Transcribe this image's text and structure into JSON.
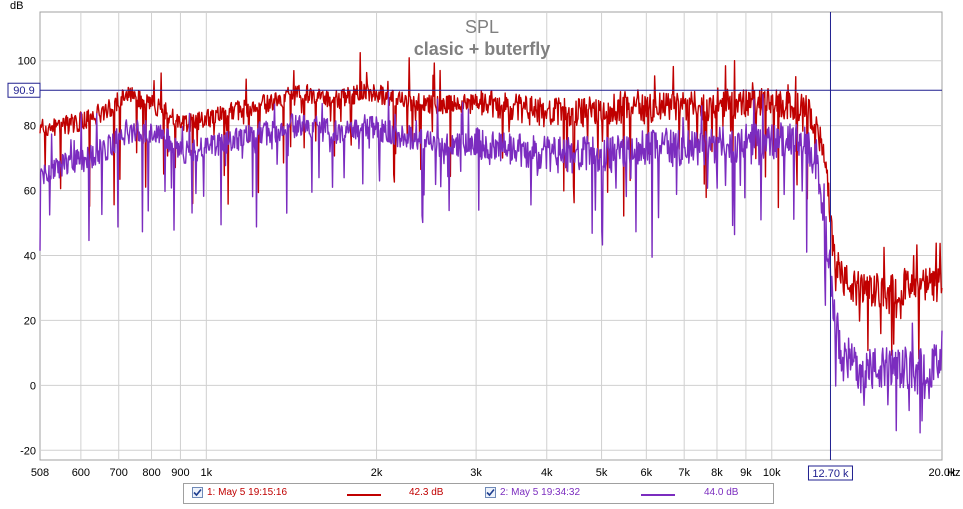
{
  "chart_data": {
    "type": "line",
    "title": "SPL",
    "subtitle": "clasic + buterfly",
    "ylabel": "dB",
    "xunit": "Hz",
    "xscale": "log",
    "xlim": [
      508,
      20000
    ],
    "ylim": [
      -23,
      115
    ],
    "grid": true,
    "yticks": [
      -20,
      0,
      20,
      40,
      60,
      80,
      100
    ],
    "xticks": [
      {
        "v": 508,
        "label": "508"
      },
      {
        "v": 600,
        "label": "600"
      },
      {
        "v": 700,
        "label": "700"
      },
      {
        "v": 800,
        "label": "800"
      },
      {
        "v": 900,
        "label": "900"
      },
      {
        "v": 1000,
        "label": "1k"
      },
      {
        "v": 2000,
        "label": "2k"
      },
      {
        "v": 3000,
        "label": "3k"
      },
      {
        "v": 4000,
        "label": "4k"
      },
      {
        "v": 5000,
        "label": "5k"
      },
      {
        "v": 6000,
        "label": "6k"
      },
      {
        "v": 7000,
        "label": "7k"
      },
      {
        "v": 8000,
        "label": "8k"
      },
      {
        "v": 9000,
        "label": "9k"
      },
      {
        "v": 10000,
        "label": "10k"
      },
      {
        "v": 20000,
        "label": "20.0k"
      }
    ],
    "cursor": {
      "x": 12700,
      "y": 90.9,
      "x_label": "12.70 k",
      "y_label": "90.9"
    },
    "series": [
      {
        "name": "1: May 5 19:15:16",
        "value_label": "42.3 dB",
        "color": "#c00000",
        "x": [
          508,
          560,
          620,
          680,
          720,
          760,
          800,
          850,
          900,
          950,
          1000,
          1100,
          1200,
          1300,
          1400,
          1500,
          1600,
          1700,
          1800,
          1900,
          2000,
          2200,
          2400,
          2600,
          2800,
          3000,
          3300,
          3600,
          4000,
          4400,
          4800,
          5200,
          5600,
          6000,
          6500,
          7000,
          7500,
          8000,
          8500,
          9000,
          9500,
          10000,
          10500,
          11000,
          11500,
          12000,
          12300,
          12600,
          12900,
          13300,
          14000,
          15000,
          16000,
          17000,
          18000,
          19000,
          20000
        ],
        "y": [
          79,
          80,
          82,
          86,
          90,
          88,
          87,
          84,
          80,
          81,
          82,
          84,
          86,
          87,
          89,
          90,
          89,
          88,
          89,
          91,
          90,
          88,
          87,
          86,
          87,
          87,
          86,
          85,
          84,
          84,
          84,
          84,
          85,
          85,
          86,
          86,
          86,
          86,
          86,
          87,
          87,
          87,
          86,
          86,
          85,
          80,
          72,
          60,
          42,
          33,
          30,
          29,
          29,
          30,
          30,
          31,
          31
        ]
      },
      {
        "name": "2: May 5 19:34:32",
        "value_label": "44.0 dB",
        "color": "#7b2cbf",
        "x": [
          508,
          560,
          620,
          680,
          720,
          760,
          800,
          850,
          900,
          950,
          1000,
          1100,
          1200,
          1300,
          1400,
          1500,
          1600,
          1700,
          1800,
          1900,
          2000,
          2200,
          2400,
          2600,
          2800,
          3000,
          3300,
          3600,
          4000,
          4400,
          4800,
          5200,
          5600,
          6000,
          6500,
          7000,
          7500,
          8000,
          8500,
          9000,
          9500,
          10000,
          10500,
          11000,
          11500,
          12000,
          12300,
          12600,
          12900,
          13300,
          14000,
          15000,
          16000,
          17000,
          18000,
          19000,
          20000
        ],
        "y": [
          65,
          68,
          70,
          74,
          78,
          79,
          78,
          76,
          72,
          72,
          73,
          75,
          77,
          78,
          80,
          80,
          79,
          78,
          79,
          80,
          79,
          77,
          76,
          74,
          74,
          74,
          73,
          72,
          71,
          71,
          71,
          71,
          72,
          73,
          73,
          73,
          73,
          74,
          74,
          75,
          75,
          75,
          75,
          75,
          74,
          68,
          56,
          40,
          20,
          10,
          6,
          5,
          5,
          5,
          5,
          6,
          6
        ]
      }
    ],
    "legend_position": "bottom"
  }
}
